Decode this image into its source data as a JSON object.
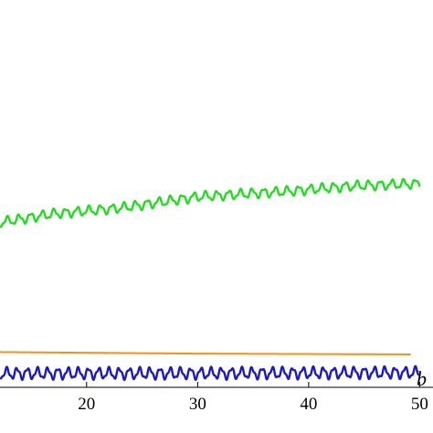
{
  "chart_data": {
    "type": "line",
    "title": "",
    "xlabel": "b",
    "ylabel": "",
    "xlim": [
      12.2,
      51.2
    ],
    "ylim": [
      0,
      1
    ],
    "grid": false,
    "x_ticks": [
      {
        "value": 20,
        "label": "20"
      },
      {
        "value": 30,
        "label": "30"
      },
      {
        "value": 40,
        "label": "40"
      },
      {
        "value": 50,
        "label": "50"
      }
    ],
    "series": [
      {
        "color": "#22dd22",
        "style": "oscillating",
        "x_start": 12.2,
        "x_end": 50.0,
        "trend": [
          [
            12.2,
            0.426
          ],
          [
            17.0,
            0.448
          ],
          [
            23.0,
            0.463
          ],
          [
            30.0,
            0.492
          ],
          [
            38.0,
            0.506
          ],
          [
            44.0,
            0.52
          ],
          [
            50.0,
            0.526
          ]
        ],
        "amplitude": 0.014,
        "period": 1.05
      },
      {
        "color": "#ff8c1a",
        "style": "smooth",
        "x_start": 12.2,
        "x_end": 49.2,
        "trend": [
          [
            12.2,
            0.091
          ],
          [
            30.0,
            0.087
          ],
          [
            49.2,
            0.085
          ]
        ],
        "amplitude": 0,
        "period": 1
      },
      {
        "color": "#1a1acc",
        "style": "oscillating",
        "x_start": 12.2,
        "x_end": 50.0,
        "trend": [
          [
            12.2,
            0.036
          ],
          [
            30.0,
            0.036
          ],
          [
            50.0,
            0.038
          ]
        ],
        "amplitude": 0.017,
        "period": 0.92
      }
    ]
  }
}
